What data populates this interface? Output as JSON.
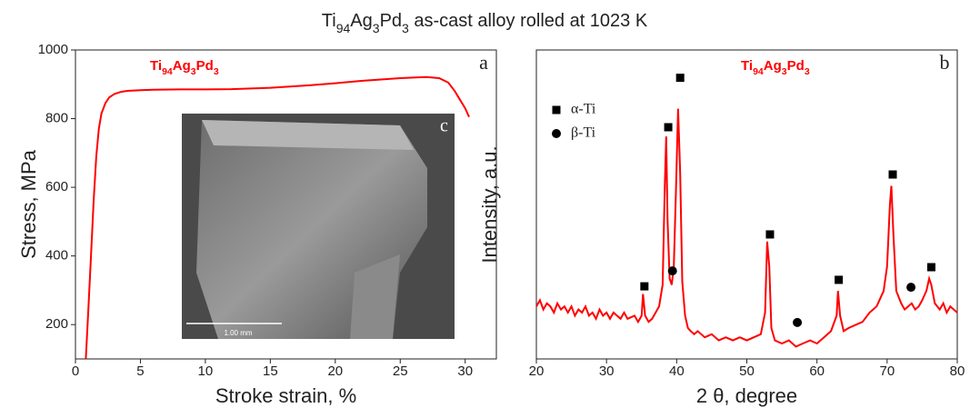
{
  "title": "Ti94Ag3Pd3 as-cast alloy rolled at 1023 K",
  "chart_data": [
    {
      "type": "line",
      "panel": "a",
      "xlabel": "Stroke strain, %",
      "ylabel": "Stress, MPa",
      "annotation": "Ti94Ag3Pd3",
      "inset_label": "c",
      "inset_scale": "1.00 mm",
      "xlim": [
        0,
        32.4
      ],
      "ylim": [
        100,
        1000
      ],
      "xticks": [
        0,
        5,
        10,
        15,
        20,
        25,
        30
      ],
      "yticks": [
        200,
        400,
        600,
        800,
        1000
      ],
      "series": [
        {
          "color": "#ff0000",
          "x": [
            0.8,
            1.0,
            1.2,
            1.4,
            1.6,
            1.8,
            2.0,
            2.3,
            2.6,
            3.0,
            3.5,
            4.0,
            5.0,
            6.0,
            8.0,
            10.0,
            12.0,
            15.0,
            18.0,
            20.0,
            22.0,
            25.0,
            27.0,
            28.0,
            28.7,
            29.2,
            29.6,
            30.0,
            30.3
          ],
          "values": [
            100,
            250,
            400,
            560,
            690,
            770,
            815,
            845,
            862,
            872,
            878,
            881,
            883,
            884,
            885,
            885,
            886,
            890,
            897,
            903,
            910,
            918,
            921,
            918,
            905,
            880,
            855,
            830,
            805
          ]
        }
      ]
    },
    {
      "type": "line",
      "panel": "b",
      "xlabel": "2 θ, degree",
      "ylabel": "Intensity, a.u.",
      "annotation": "Ti94Ag3Pd3",
      "xlim": [
        20,
        80
      ],
      "ylim": [
        0,
        100
      ],
      "xticks": [
        20,
        30,
        40,
        50,
        60,
        70,
        80
      ],
      "series": [
        {
          "color": "#ff0000",
          "x": [
            20,
            20.5,
            21,
            21.5,
            22,
            22.5,
            23,
            23.5,
            24,
            24.5,
            25,
            25.5,
            26,
            26.5,
            27,
            27.5,
            28,
            28.5,
            29,
            29.5,
            30,
            30.5,
            31,
            31.5,
            32,
            32.5,
            33,
            34,
            34.5,
            35,
            35.2,
            35.5,
            36,
            36.5,
            37,
            37.5,
            38,
            38.3,
            38.5,
            38.7,
            39,
            39.3,
            39.6,
            39.9,
            40.2,
            40.5,
            40.8,
            41.2,
            41.6,
            42,
            42.5,
            43,
            44,
            45,
            46,
            47,
            48,
            49,
            50,
            51,
            52,
            52.6,
            52.9,
            53.2,
            53.5,
            54,
            55,
            56,
            57,
            58,
            59,
            60,
            61,
            62,
            62.8,
            63,
            63.3,
            63.8,
            64.5,
            65.5,
            66.5,
            67.5,
            68.5,
            69.5,
            70,
            70.4,
            70.6,
            70.9,
            71.3,
            72,
            72.5,
            73,
            73.5,
            74,
            74.5,
            75,
            75.6,
            76,
            76.3,
            76.8,
            77.5,
            78,
            78.5,
            79,
            79.5,
            80
          ],
          "values": [
            17,
            19,
            16,
            18,
            17,
            15,
            18,
            16,
            17,
            15,
            17,
            14,
            16,
            15,
            17,
            14,
            15,
            13,
            16,
            14,
            15,
            13,
            15,
            14,
            13,
            15,
            13,
            14,
            12,
            14,
            21,
            14,
            12,
            13,
            15,
            17,
            24,
            55,
            72,
            45,
            26,
            24,
            30,
            55,
            81,
            60,
            25,
            14,
            10,
            9,
            8,
            9,
            7,
            8,
            6,
            7,
            6,
            7,
            6,
            7,
            8,
            15,
            38,
            30,
            10,
            6,
            5,
            6,
            4,
            5,
            6,
            5,
            7,
            9,
            14,
            22,
            14,
            9,
            10,
            11,
            12,
            15,
            17,
            22,
            30,
            50,
            56,
            40,
            22,
            18,
            16,
            17,
            18,
            16,
            17,
            19,
            22,
            26,
            24,
            18,
            16,
            18,
            15,
            17,
            16,
            15
          ]
        },
        {
          "name": "α-Ti",
          "marker": "square",
          "color": "#000000",
          "x": [
            35.4,
            38.8,
            40.5,
            53.3,
            63.1,
            70.8,
            76.3
          ],
          "values": [
            23.5,
            75,
            91,
            40.3,
            25.6,
            59.7,
            29.7
          ]
        },
        {
          "name": "β-Ti",
          "marker": "circle",
          "color": "#000000",
          "x": [
            39.4,
            57.2,
            73.4
          ],
          "values": [
            28.5,
            11.8,
            23.2
          ]
        }
      ]
    }
  ]
}
